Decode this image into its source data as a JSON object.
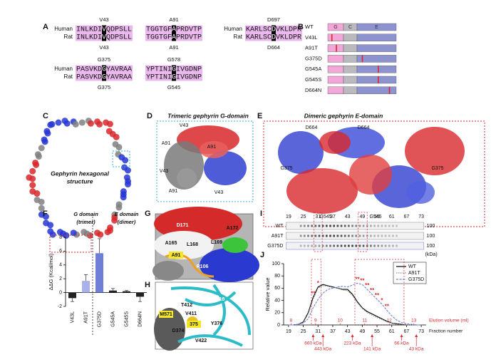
{
  "panels": {
    "A": {
      "label": "A",
      "alignments": [
        {
          "top": "V43",
          "bottom": "V43",
          "rows": [
            {
              "species": "Human",
              "pre": "INLKDI",
              "site": "V",
              "post": "QDPSLL"
            },
            {
              "species": "Rat",
              "pre": "INLKDI",
              "site": "V",
              "post": "QDPSLL"
            }
          ]
        },
        {
          "top": "A91",
          "bottom": "A91",
          "rows": [
            {
              "pre": "TGGTGF",
              "site": "A",
              "post": "PRDVTP"
            },
            {
              "pre": "TGGTGF",
              "site": "A",
              "post": "PRDVTP"
            }
          ]
        },
        {
          "top": "D697",
          "bottom": "D664",
          "rows": [
            {
              "species": "Human",
              "pre": "KARLSC",
              "site": "D",
              "post": "VKLDPR"
            },
            {
              "species": "Rat",
              "pre": "KARLSC",
              "site": "D",
              "post": "VKLDPR"
            }
          ]
        },
        {
          "top": "G375",
          "bottom": "G375",
          "rows": [
            {
              "species": "Human",
              "pre": "PASVKD",
              "site": "G",
              "post": "YAVRAA"
            },
            {
              "species": "Rat",
              "pre": "PASVKD",
              "site": "G",
              "post": "YAVRAA"
            }
          ]
        },
        {
          "top": "G578",
          "bottom": "G545",
          "rows": [
            {
              "pre": "YPTINI",
              "site": "G",
              "post": "IVGDNP"
            },
            {
              "pre": "YPTINI",
              "site": "G",
              "post": "IVGDNP"
            }
          ]
        }
      ]
    },
    "B": {
      "label": "B",
      "domains": [
        "G",
        "C",
        "E"
      ],
      "rows": [
        "WT",
        "V43L",
        "A91T",
        "G375D",
        "G545A",
        "G545S",
        "D664N"
      ]
    },
    "C": {
      "label": "C",
      "title_lines": [
        "Gephyrin hexagonal",
        "structure"
      ]
    },
    "D": {
      "label": "D",
      "title": "Trimeric gephyrin G-domain",
      "residues": [
        "V43",
        "A91",
        "A91",
        "V43",
        "A91",
        "V43"
      ]
    },
    "E": {
      "label": "E",
      "title": "Dimeric gephyrin E-domain",
      "residues": [
        "D664",
        "D664",
        "G375",
        "G375",
        "G545",
        "G545"
      ]
    },
    "G": {
      "label": "G",
      "residues": [
        "D171",
        "A172",
        "A165",
        "L168",
        "L169",
        "A91",
        "R106"
      ]
    },
    "H": {
      "label": "H",
      "residues": [
        "T412",
        "R410",
        "M571",
        "V411",
        "D374",
        "Y376",
        "V422",
        "375"
      ]
    },
    "I": {
      "label": "I",
      "lanes": [
        19,
        25,
        31,
        37,
        43,
        49,
        55,
        61,
        67,
        73
      ],
      "rows": [
        "WT",
        "A91T",
        "G375D"
      ],
      "size_marks": [
        "100",
        "100",
        "100"
      ],
      "size_unit": "(kDa)"
    }
  },
  "chart_data": [
    {
      "type": "bar",
      "panel": "F",
      "y_label": "ΔΔG (Kcal/mol)",
      "groups": [
        {
          "name": "G domain",
          "note": "(trimer)"
        },
        {
          "name": "E domain",
          "note": "(dimer)"
        }
      ],
      "categories": [
        "V43L",
        "A91T",
        "G375D",
        "G545A",
        "G545S",
        "D664N"
      ],
      "values": [
        -0.8,
        1.7,
        5.7,
        0.3,
        0.2,
        -0.6
      ],
      "errors": [
        0.5,
        0.9,
        2.1,
        0.3,
        0.1,
        0.7
      ],
      "colors": [
        "#222222",
        "#aab0e8",
        "#6f7fd8",
        "#222222",
        "#222222",
        "#222222"
      ],
      "ylim": [
        -2,
        8
      ],
      "yticks": [
        -2,
        0,
        2,
        4,
        6,
        8
      ]
    },
    {
      "type": "line",
      "panel": "J",
      "y_label": "Relative value",
      "x_label": "Fraction number",
      "x": [
        19,
        21,
        23,
        25,
        27,
        29,
        31,
        33,
        35,
        37,
        39,
        41,
        43,
        45,
        47,
        49,
        51,
        53,
        55,
        57,
        59,
        61,
        63,
        65,
        67,
        69,
        71,
        73
      ],
      "series": [
        {
          "name": "WT",
          "color": "#000000",
          "values": [
            0,
            0,
            1,
            5,
            20,
            45,
            62,
            66,
            64,
            62,
            60,
            58,
            58,
            50,
            38,
            28,
            22,
            18,
            14,
            10,
            6,
            3,
            2,
            1,
            0,
            0,
            0,
            0
          ]
        },
        {
          "name": "A91T",
          "color": "#8a8a8a",
          "values": [
            0,
            0,
            1,
            4,
            18,
            42,
            60,
            64,
            63,
            61,
            60,
            57,
            56,
            48,
            36,
            27,
            20,
            16,
            12,
            9,
            5,
            3,
            1,
            1,
            0,
            0,
            0,
            0
          ]
        },
        {
          "name": "G375D",
          "color": "#6f7fd8",
          "values": [
            0,
            0,
            1,
            3,
            10,
            28,
            42,
            52,
            58,
            60,
            62,
            63,
            62,
            65,
            68,
            66,
            58,
            50,
            42,
            34,
            24,
            15,
            8,
            4,
            2,
            1,
            0,
            0
          ]
        }
      ],
      "xlim": [
        17,
        75
      ],
      "xticks": [
        19,
        25,
        31,
        37,
        43,
        49,
        55,
        61,
        67,
        73
      ],
      "ylim": [
        0,
        100
      ],
      "yticks": [
        0,
        20,
        40,
        60,
        80,
        100
      ],
      "x2_label": "Elution volume (ml)",
      "x2lim": [
        7.7,
        13.5
      ],
      "x2ticks": [
        8,
        9,
        10,
        11,
        12,
        13
      ],
      "markers": [
        {
          "x": 29,
          "label": "660 kDa"
        },
        {
          "x": 33,
          "label": "443 kDa"
        },
        {
          "x": 45,
          "label": "223 kDa"
        },
        {
          "x": 53,
          "label": "141 kDa"
        },
        {
          "x": 65,
          "label": "66 kDa"
        },
        {
          "x": 71,
          "label": "43 kDa"
        }
      ],
      "annotations": [
        {
          "x": 29,
          "text": "**"
        },
        {
          "x": 31,
          "text": "*"
        },
        {
          "x": 47,
          "text": "**"
        },
        {
          "x": 49,
          "text": "**"
        },
        {
          "x": 51,
          "text": "**"
        },
        {
          "x": 53,
          "text": "**"
        },
        {
          "x": 55,
          "text": "**"
        },
        {
          "x": 57,
          "text": "*"
        },
        {
          "x": 59,
          "text": "**"
        }
      ]
    }
  ]
}
